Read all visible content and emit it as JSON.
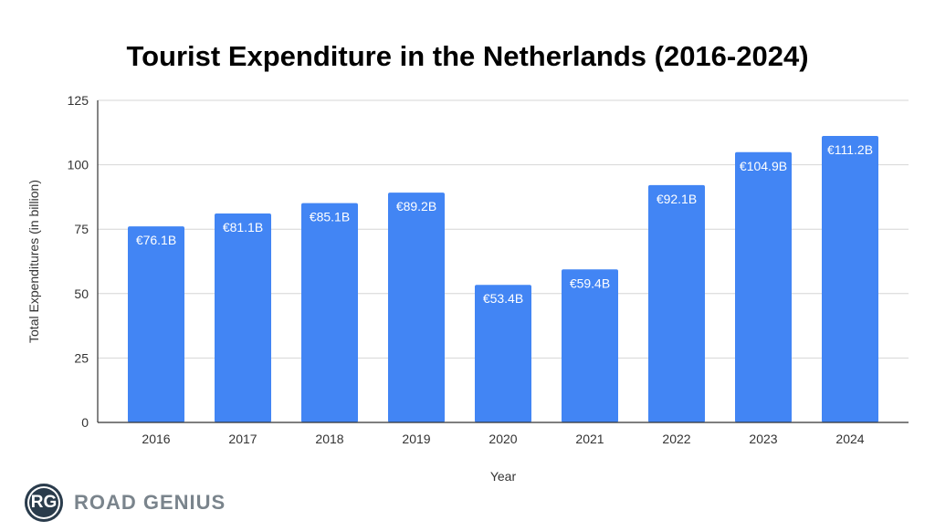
{
  "chart_data": {
    "type": "bar",
    "title": "Tourist Expenditure in the Netherlands (2016-2024)",
    "xlabel": "Year",
    "ylabel": "Total Expenditures (in billion)",
    "categories": [
      "2016",
      "2017",
      "2018",
      "2019",
      "2020",
      "2021",
      "2022",
      "2023",
      "2024"
    ],
    "values": [
      76.1,
      81.1,
      85.1,
      89.2,
      53.4,
      59.4,
      92.1,
      104.9,
      111.2
    ],
    "data_labels": [
      "€76.1B",
      "€81.1B",
      "€85.1B",
      "€89.2B",
      "€53.4B",
      "€59.4B",
      "€92.1B",
      "€104.9B",
      "€111.2B"
    ],
    "ylim": [
      0,
      125
    ],
    "yticks": [
      "0",
      "25",
      "50",
      "75",
      "100",
      "125"
    ],
    "grid": true,
    "bar_color": "#4285f4"
  },
  "logo": {
    "initials": "RG",
    "name": "ROAD GENIUS"
  }
}
